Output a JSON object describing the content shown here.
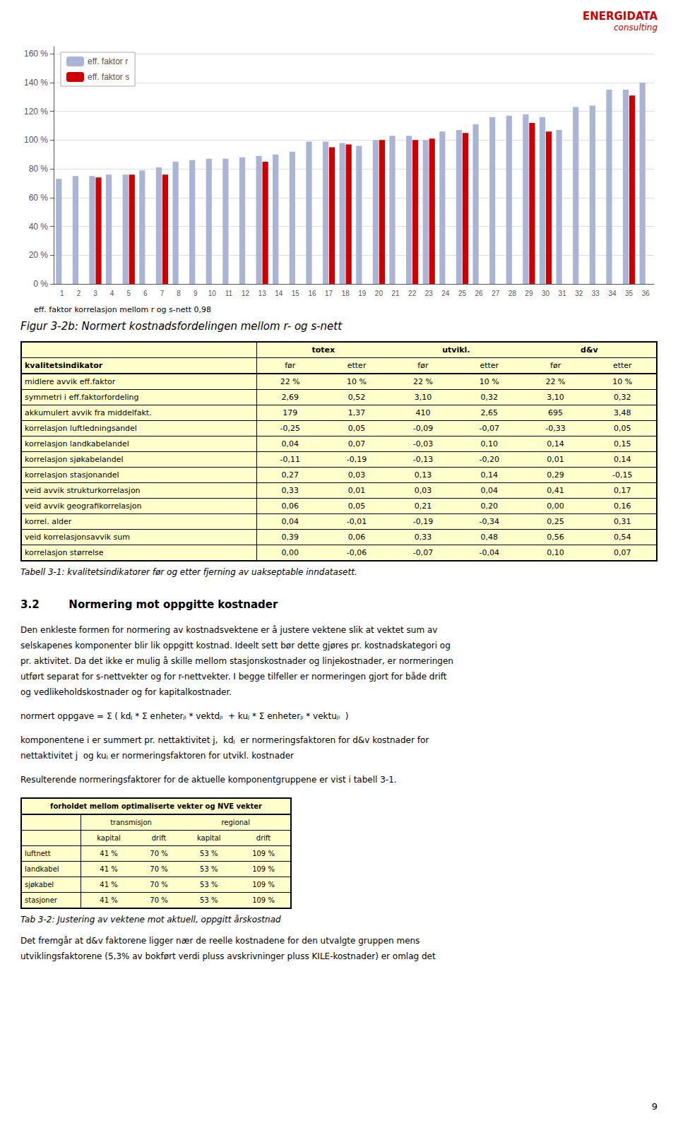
{
  "chart_data": {
    "type": "bar",
    "categories": [
      "1",
      "2",
      "3",
      "4",
      "5",
      "6",
      "7",
      "8",
      "9",
      "10",
      "11",
      "12",
      "13",
      "14",
      "15",
      "16",
      "17",
      "18",
      "19",
      "20",
      "21",
      "22",
      "23",
      "24",
      "25",
      "26",
      "27",
      "28",
      "29",
      "30",
      "31",
      "32",
      "33",
      "34",
      "35",
      "36"
    ],
    "series": [
      {
        "name": "eff. faktor r",
        "color": "#aab4d4",
        "values": [
          73,
          75,
          75,
          76,
          76,
          79,
          81,
          85,
          86,
          87,
          87,
          88,
          89,
          90,
          92,
          99,
          99,
          98,
          96,
          100,
          103,
          103,
          100,
          106,
          107,
          111,
          116,
          117,
          118,
          116,
          107,
          123,
          124,
          135,
          135,
          140
        ]
      },
      {
        "name": "eff. faktor s",
        "color": "#cc0000",
        "values": [
          0,
          0,
          74,
          0,
          76,
          0,
          76,
          0,
          0,
          0,
          0,
          0,
          85,
          0,
          0,
          0,
          95,
          97,
          0,
          100,
          0,
          100,
          101,
          0,
          105,
          0,
          0,
          0,
          112,
          106,
          0,
          0,
          0,
          0,
          131,
          0
        ]
      }
    ],
    "ylim": [
      0,
      165
    ],
    "yticks": [
      {
        "value": 0,
        "label": "0 %"
      },
      {
        "value": 20,
        "label": "20 %"
      },
      {
        "value": 40,
        "label": "40 %"
      },
      {
        "value": 60,
        "label": "60 %"
      },
      {
        "value": 80,
        "label": "80 %"
      },
      {
        "value": 100,
        "label": "100 %"
      },
      {
        "value": 120,
        "label": "120 %"
      },
      {
        "value": 140,
        "label": "140 %"
      },
      {
        "value": 160,
        "label": "160 %"
      }
    ],
    "grid": true,
    "legend": "upper left",
    "annotations": [
      "eff. faktor korrelasjon mellom r og s-nett        0,98",
      "Figur 3-2b: Normert kostnadsfordelingen mellom r- og s-nett"
    ]
  },
  "page": {
    "logo": [
      "ENERGIDATA",
      "consulting"
    ],
    "table1": {
      "group_header": [
        "totex",
        "utvikl.",
        "d&v"
      ],
      "header": [
        "kvalitetsindikator",
        "før",
        "etter",
        "før",
        "etter",
        "før",
        "etter"
      ],
      "rows": [
        [
          "midlere  avvik eff.faktor",
          "22 %",
          "10 %",
          "22 %",
          "10 %",
          "22 %",
          "10 %"
        ],
        [
          "symmetri i eff.faktorfordeling",
          "2,69",
          "0,52",
          "3,10",
          "0,32",
          "3,10",
          "0,32"
        ],
        [
          "akkumulert avvik fra middelfakt.",
          "179",
          "1,37",
          "410",
          "2,65",
          "695",
          "3,48"
        ],
        [
          "korrelasjon luftledningsandel",
          "-0,25",
          "0,05",
          "-0,09",
          "-0,07",
          "-0,33",
          "0,05"
        ],
        [
          "korrelasjon landkabelandel",
          "0,04",
          "0,07",
          "-0,03",
          "0,10",
          "0,14",
          "0,15"
        ],
        [
          "korrelasjon sjøkabelandel",
          "-0,11",
          "-0,19",
          "-0,13",
          "-0,20",
          "0,01",
          "0,14"
        ],
        [
          "korrelasjon stasjonandel",
          "0,27",
          "0,03",
          "0,13",
          "0,14",
          "0,29",
          "-0,15"
        ],
        [
          "veid avvik strukturkorrelasjon",
          "0,33",
          "0,01",
          "0,03",
          "0,04",
          "0,41",
          "0,17"
        ],
        [
          "veid avvik geografikorrelasjon",
          "0,06",
          "0,05",
          "0,21",
          "0,20",
          "0,00",
          "0,16"
        ],
        [
          "korrel. alder",
          "0,04",
          "-0,01",
          "-0,19",
          "-0,34",
          "0,25",
          "0,31"
        ],
        [
          "veid korrelasjonsavvik sum",
          "0,39",
          "0,06",
          "0,33",
          "0,48",
          "0,56",
          "0,54"
        ],
        [
          "korrelasjon størrelse",
          "0,00",
          "-0,06",
          "-0,07",
          "-0,04",
          "0,10",
          "0,07"
        ]
      ],
      "caption": "Tabell 3-1: kvalitetsindikatorer før og etter fjerning av uakseptable inndatasett."
    },
    "section_title": "3.2        Normering mot oppgitte kostnader",
    "body1": [
      "Den enkleste formen for normering av kostnadsvektene er å justere vektene slik at vektet sum av",
      "selskapenes komponenter blir lik oppgitt kostnad. Ideelt sett bør dette gjøres pr. kostnadskategori og",
      "pr. aktivitet. Da det ikke er mulig å skille mellom stasjonskostnader og linjekostnader, er normeringen",
      "utført separat for s-nettvekter og for r-nettvekter. I begge tilfeller er normeringen gjort for både drift",
      "og vedlikeholdskostnader og for kapitalkostnader."
    ],
    "formula": "normert oppgave = Σ ( kdⱼ * Σ enheterⱼᵢ * vektdⱼᵢ  + kuⱼ * Σ enheterⱼᵢ * vektuⱼᵢ  )",
    "body2": [
      "komponentene i er summert pr. nettaktivitet j,  kdⱼ  er normeringsfaktoren for d&v kostnader for",
      "nettaktivitet j  og kuⱼ er normeringsfaktoren for utvikl. kostnader"
    ],
    "body3": "Resulterende normeringsfaktorer for de aktuelle komponentgruppene er vist i tabell 3-1.",
    "table2": {
      "title": "forholdet mellom optimaliserte vekter og NVE vekter",
      "group_header": [
        "transmisjon",
        "regional"
      ],
      "header": [
        "kapital",
        "drift",
        "kapital",
        "drift"
      ],
      "rows": [
        [
          "luftnett",
          "41 %",
          "70 %",
          "53 %",
          "109 %"
        ],
        [
          "landkabel",
          "41 %",
          "70 %",
          "53 %",
          "109 %"
        ],
        [
          "sjøkabel",
          "41 %",
          "70 %",
          "53 %",
          "109 %"
        ],
        [
          "stasjoner",
          "41 %",
          "70 %",
          "53 %",
          "109 %"
        ]
      ],
      "caption": "Tab 3-2: Justering av vektene mot aktuell, oppgitt årskostnad"
    },
    "body4": [
      "Det fremgår at d&v faktorene ligger nær de reelle kostnadene for den utvalgte gruppen mens",
      "utviklingsfaktorene (5,3% av bokført verdi pluss avskrivninger pluss KILE-kostnader) er omlag det"
    ],
    "page_number": "9"
  }
}
